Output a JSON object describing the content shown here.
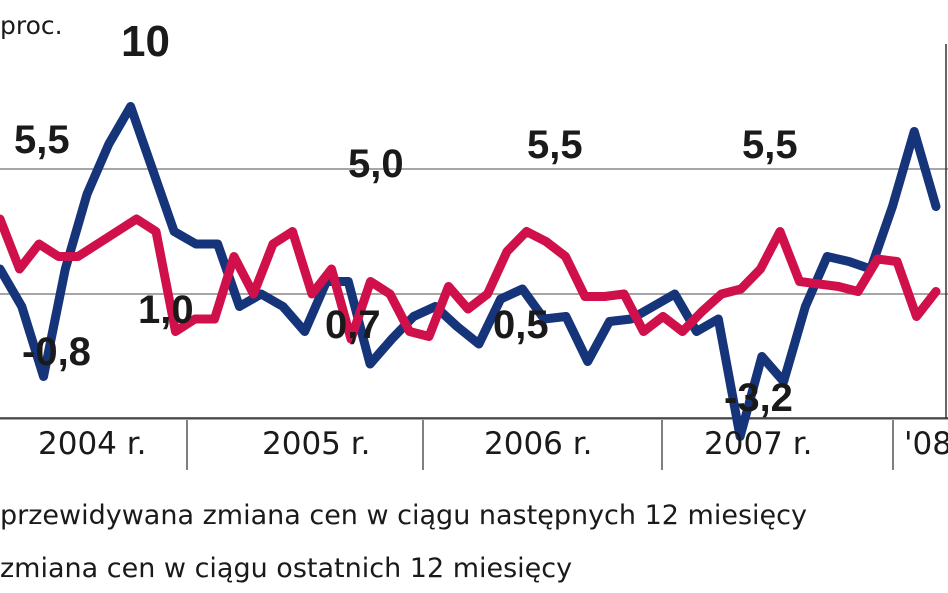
{
  "chart_data": {
    "type": "line",
    "unit_label": "proc.",
    "year_labels": [
      "2004 r.",
      "2005 r.",
      "2006 r.",
      "2007 r.",
      "'08"
    ],
    "colors": {
      "expected": "#d0104a",
      "past": "#16347a",
      "grid": "#888888"
    },
    "gridlines": [
      7.5,
      2.5,
      -2.5
    ],
    "series": [
      {
        "name": "przewidywana zmiana cen w ciągu następnych 12 miesięcy",
        "color": "#d0104a",
        "values": [
          5.5,
          3.5,
          4.5,
          4.0,
          4.0,
          4.5,
          5.0,
          5.5,
          5.0,
          1.0,
          1.5,
          1.5,
          4.0,
          2.5,
          4.5,
          5.0,
          2.5,
          3.5,
          0.7,
          3.0,
          2.5,
          1.0,
          0.8,
          2.8,
          1.9,
          2.5,
          4.2,
          5.0,
          4.6,
          4.0,
          2.4,
          2.4,
          2.5,
          1.0,
          1.6,
          1.0,
          1.8,
          2.5,
          2.7,
          3.5,
          5.0,
          3.0,
          2.9,
          2.8,
          2.6,
          3.9,
          3.8,
          1.6,
          2.6
        ]
      },
      {
        "name": "zmiana cen w ciągu ostatnich 12 miesięcy",
        "color": "#16347a",
        "values": [
          3.5,
          2.0,
          -0.8,
          3.5,
          6.5,
          8.5,
          10.0,
          7.5,
          5.0,
          4.5,
          4.5,
          2.0,
          2.5,
          2.0,
          1.0,
          3.0,
          3.0,
          -0.3,
          0.7,
          1.6,
          2.0,
          1.2,
          0.5,
          2.3,
          2.7,
          1.5,
          1.6,
          -0.2,
          1.4,
          1.5,
          2.0,
          2.5,
          1.0,
          1.5,
          -3.2,
          0.0,
          -1.0,
          2.0,
          4.0,
          3.8,
          3.5,
          6.0,
          9.0,
          6.0
        ]
      }
    ],
    "data_labels": [
      "5,5",
      "10",
      "-0,8",
      "1,0",
      "5,0",
      "0,7",
      "5,5",
      "0,5",
      "5,5",
      "-3,2"
    ]
  },
  "legend": {
    "expected": "przewidywana zmiana cen w ciągu następnych 12 miesięcy",
    "past": "zmiana cen w ciągu ostatnich 12 miesięcy"
  }
}
